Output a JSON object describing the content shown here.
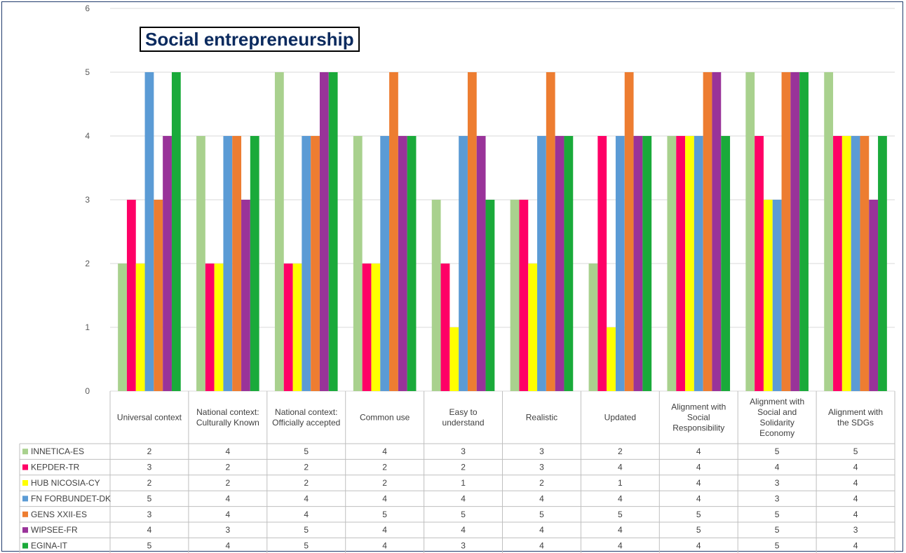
{
  "chart_data": {
    "type": "bar",
    "title": "Social entrepreneurship",
    "ylim": [
      0,
      6
    ],
    "yticks": [
      0,
      1,
      2,
      3,
      4,
      5,
      6
    ],
    "grid": true,
    "legend": "data-table-rows",
    "categories": [
      [
        "Universal context"
      ],
      [
        "National context:",
        "Culturally Known"
      ],
      [
        "National context:",
        "Officially accepted"
      ],
      [
        "Common use"
      ],
      [
        "Easy to",
        "understand"
      ],
      [
        "Realistic"
      ],
      [
        "Updated"
      ],
      [
        "Alignment with",
        "Social",
        "Responsibility"
      ],
      [
        "Alignment with",
        "Social and",
        "Solidarity",
        "Economy"
      ],
      [
        "Alignment with",
        "the SDGs"
      ]
    ],
    "series": [
      {
        "name": "INNETICA-ES",
        "color": "#a9d18e",
        "values": [
          2,
          4,
          5,
          4,
          3,
          3,
          2,
          4,
          5,
          5
        ]
      },
      {
        "name": "KEPDER-TR",
        "color": "#ff0066",
        "values": [
          3,
          2,
          2,
          2,
          2,
          3,
          4,
          4,
          4,
          4
        ]
      },
      {
        "name": "HUB NICOSIA-CY",
        "color": "#ffff00",
        "values": [
          2,
          2,
          2,
          2,
          1,
          2,
          1,
          4,
          3,
          4
        ]
      },
      {
        "name": "FN FORBUNDET-DK",
        "color": "#5b9bd5",
        "values": [
          5,
          4,
          4,
          4,
          4,
          4,
          4,
          4,
          3,
          4
        ]
      },
      {
        "name": "GENS XXII-ES",
        "color": "#ed7d31",
        "values": [
          3,
          4,
          4,
          5,
          5,
          5,
          5,
          5,
          5,
          4
        ]
      },
      {
        "name": "WIPSEE-FR",
        "color": "#993399",
        "values": [
          4,
          3,
          5,
          4,
          4,
          4,
          4,
          5,
          5,
          3
        ]
      },
      {
        "name": "EGINA-IT",
        "color": "#1aaa3a",
        "values": [
          5,
          4,
          5,
          4,
          3,
          4,
          4,
          4,
          5,
          4
        ]
      }
    ]
  }
}
